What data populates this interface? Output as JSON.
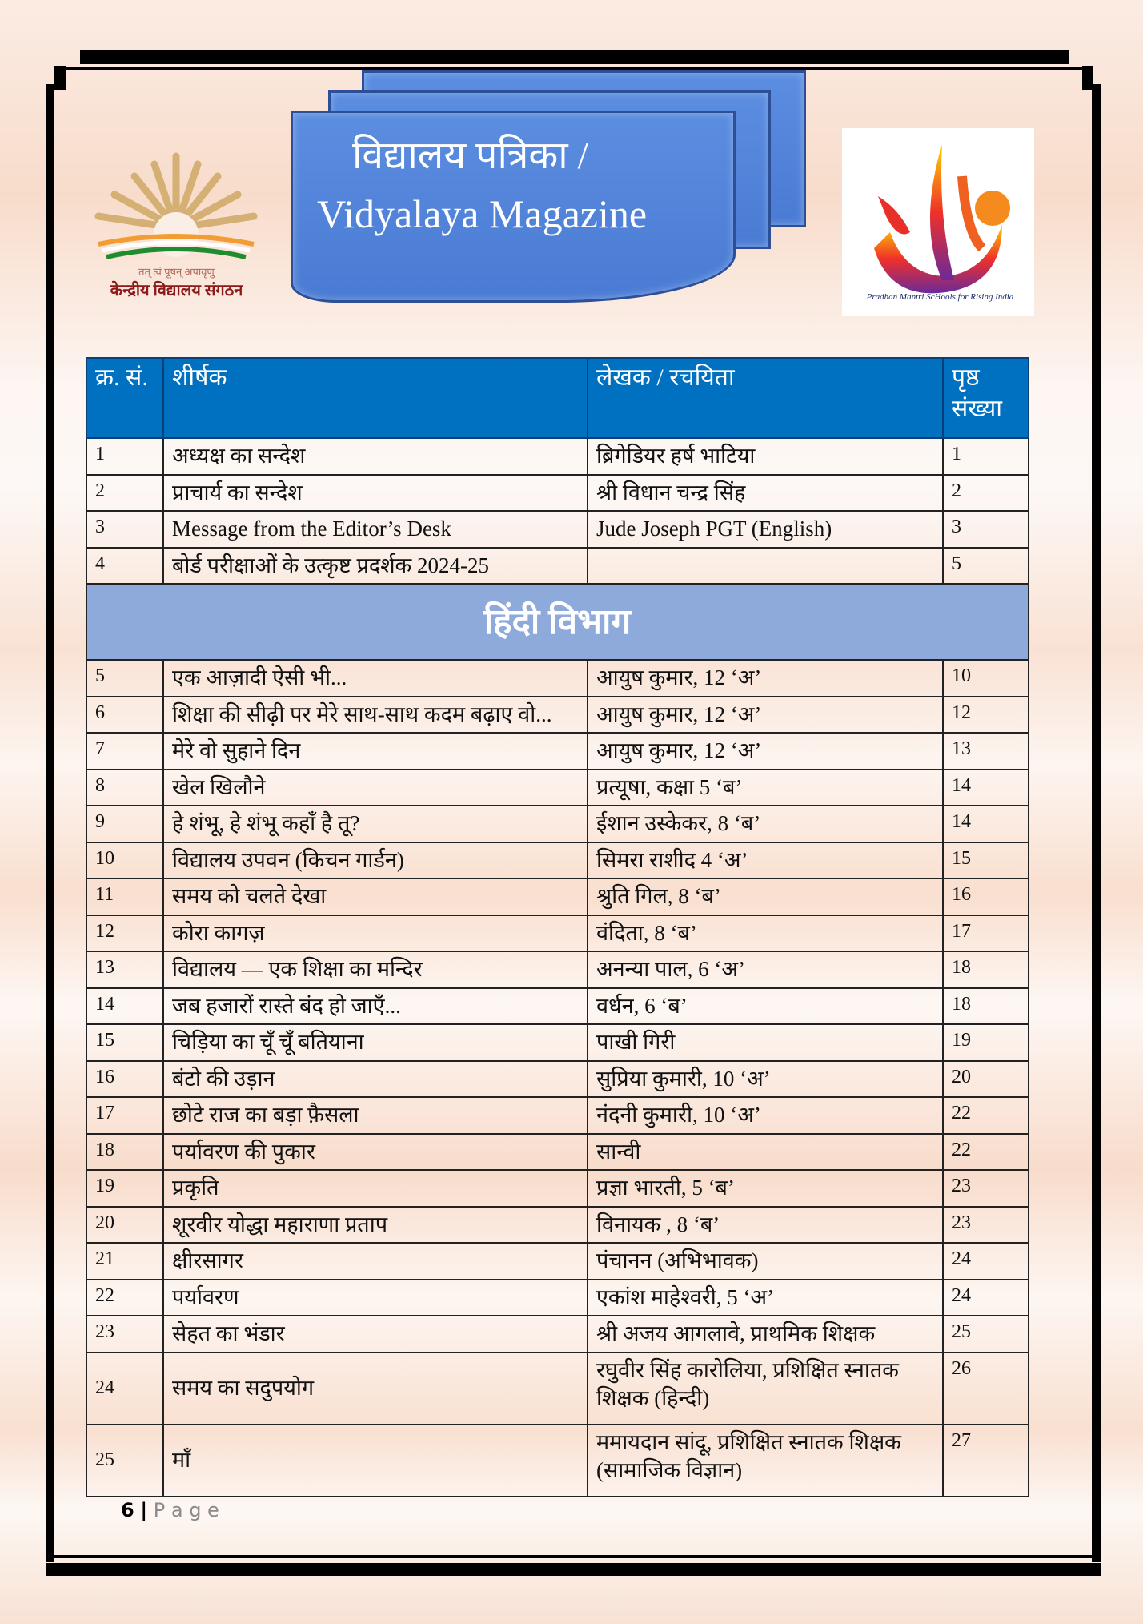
{
  "header": {
    "title_hindi": "विद्यालय पत्रिका /",
    "title_english": "Vidyalaya Magazine"
  },
  "logos": {
    "left": "केन्द्रीय विद्यालय संगठन",
    "left_motto": "तत् त्वं पूषन् अपावृणु",
    "right": "Pradhan Mantri ScHools for Rising India"
  },
  "table": {
    "headers": [
      "क्र. सं.",
      "शीर्षक",
      "लेखक / रचयिता",
      "पृष्ठ संख्या"
    ],
    "rows_top": [
      [
        "1",
        "अध्यक्ष का सन्देश",
        "ब्रिगेडियर हर्ष भाटिया",
        "1"
      ],
      [
        "2",
        "प्राचार्य का सन्देश",
        "श्री विधान चन्द्र सिंह",
        "2"
      ],
      [
        "3",
        "Message from the Editor’s Desk",
        "Jude Joseph PGT (English)",
        "3"
      ],
      [
        "4",
        "बोर्ड परीक्षाओं के उत्कृष्ट प्रदर्शक 2024-25",
        "",
        "5"
      ]
    ],
    "section": "हिंदी विभाग",
    "rows": [
      [
        "5",
        "एक आज़ादी ऐसी भी...",
        "आयुष कुमार, 12 ‘अ’",
        "10"
      ],
      [
        "6",
        "शिक्षा की सीढ़ी पर मेरे साथ-साथ कदम बढ़ाए वो...",
        "आयुष कुमार, 12 ‘अ’",
        "12"
      ],
      [
        "7",
        "मेरे वो सुहाने दिन",
        "आयुष कुमार, 12 ‘अ’",
        "13"
      ],
      [
        "8",
        "खेल खिलौने",
        "प्रत्यूषा, कक्षा 5 ‘ब’",
        "14"
      ],
      [
        "9",
        "हे शंभू, हे शंभू कहाँ है तू?",
        "ईशान उस्केकर, 8 ‘ब’",
        "14"
      ],
      [
        "10",
        "विद्यालय उपवन   (किचन गार्डन)",
        "सिमरा राशीद  4 ‘अ’",
        "15"
      ],
      [
        "11",
        "समय को चलते देखा",
        "श्रुति गिल, 8 ‘ब’",
        "16"
      ],
      [
        "12",
        "कोरा कागज़",
        "वंदिता, 8 ‘ब’",
        "17"
      ],
      [
        "13",
        "विद्यालय — एक शिक्षा का मन्दिर",
        "अनन्या पाल, 6 ‘अ’",
        "18"
      ],
      [
        "14",
        "जब हजारों रास्ते बंद हो जाएँ...",
        "वर्धन, 6 ‘ब’",
        "18"
      ],
      [
        "15",
        "चिड़िया का चूँ चूँ बतियाना",
        "पाखी गिरी",
        "19"
      ],
      [
        "16",
        "बंटो की उड़ान",
        "सुप्रिया कुमारी, 10 ‘अ’",
        "20"
      ],
      [
        "17",
        "छोटे राज का बड़ा फ़ैसला",
        "नंदनी कुमारी, 10 ‘अ’",
        "22"
      ],
      [
        "18",
        "पर्यावरण की पुकार",
        "सान्वी",
        "22"
      ],
      [
        "19",
        "प्रकृति",
        "प्रज्ञा भारती, 5 ‘ब’",
        "23"
      ],
      [
        "20",
        "शूरवीर योद्धा महाराणा प्रताप",
        "विनायक , 8 ‘ब’",
        "23"
      ],
      [
        "21",
        "क्षीरसागर",
        "पंचानन (अभिभावक)",
        "24"
      ],
      [
        "22",
        "पर्यावरण",
        "एकांश माहेश्वरी, 5 ‘अ’",
        "24"
      ],
      [
        "23",
        "सेहत का भंडार",
        "श्री अजय आगलावे, प्राथमिक शिक्षक",
        "25"
      ],
      [
        "24",
        "समय का सदुपयोग",
        "रघुवीर सिंह कारोलिया, प्रशिक्षित स्नातक शिक्षक (हिन्दी)",
        "26"
      ],
      [
        "25",
        "माँ",
        "ममायदान सांदू, प्रशिक्षित स्नातक शिक्षक (सामाजिक विज्ञान)",
        "27"
      ]
    ]
  },
  "footer": {
    "page_number": "6",
    "separator": "|",
    "page_label": "P a g e"
  },
  "colors": {
    "header_blue": "#0070c0",
    "section_band": "#8eaadb",
    "banner_blue": "#4a7bd4"
  }
}
